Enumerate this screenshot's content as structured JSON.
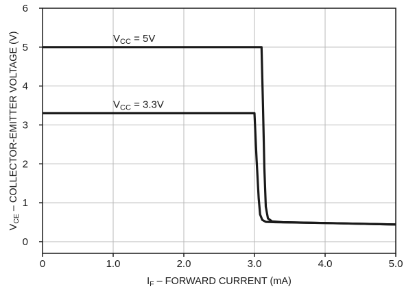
{
  "chart_data": {
    "type": "line",
    "xlabel": {
      "main": "I",
      "sub": "F",
      "rest": " – FORWARD CURRENT (mA)"
    },
    "ylabel": {
      "main": "V",
      "sub": "CE",
      "rest": " – COLLECTOR-EMITTER VOLTAGE (V)"
    },
    "xlim": [
      0,
      5
    ],
    "ylim": [
      -0.3,
      6
    ],
    "x_ticks": [
      0,
      1,
      2,
      3,
      4,
      5
    ],
    "x_tick_labels": [
      "0",
      "1.0",
      "2.0",
      "3.0",
      "4.0",
      "5.0"
    ],
    "y_ticks": [
      0,
      1,
      2,
      3,
      4,
      5,
      6
    ],
    "y_tick_labels": [
      "0",
      "1",
      "2",
      "3",
      "4",
      "5",
      "6"
    ],
    "grid": true,
    "series": [
      {
        "name": {
          "main": "V",
          "sub": "CC",
          "rest": " = 5V"
        },
        "x": [
          0,
          3.1,
          3.12,
          3.14,
          3.16,
          3.19,
          3.25,
          3.4,
          4.0,
          5.0
        ],
        "y": [
          5.0,
          5.0,
          3.5,
          1.9,
          0.9,
          0.6,
          0.52,
          0.5,
          0.48,
          0.44
        ]
      },
      {
        "name": {
          "main": "V",
          "sub": "CC",
          "rest": " = 3.3V"
        },
        "x": [
          0,
          3.0,
          3.03,
          3.06,
          3.08,
          3.11,
          3.16,
          3.3,
          4.0,
          5.0
        ],
        "y": [
          3.3,
          3.3,
          2.1,
          1.1,
          0.7,
          0.56,
          0.51,
          0.5,
          0.48,
          0.44
        ]
      }
    ],
    "annotations": [
      {
        "series": 0,
        "x": 1.0,
        "y": 5.0
      },
      {
        "series": 1,
        "x": 1.0,
        "y": 3.3
      }
    ]
  }
}
